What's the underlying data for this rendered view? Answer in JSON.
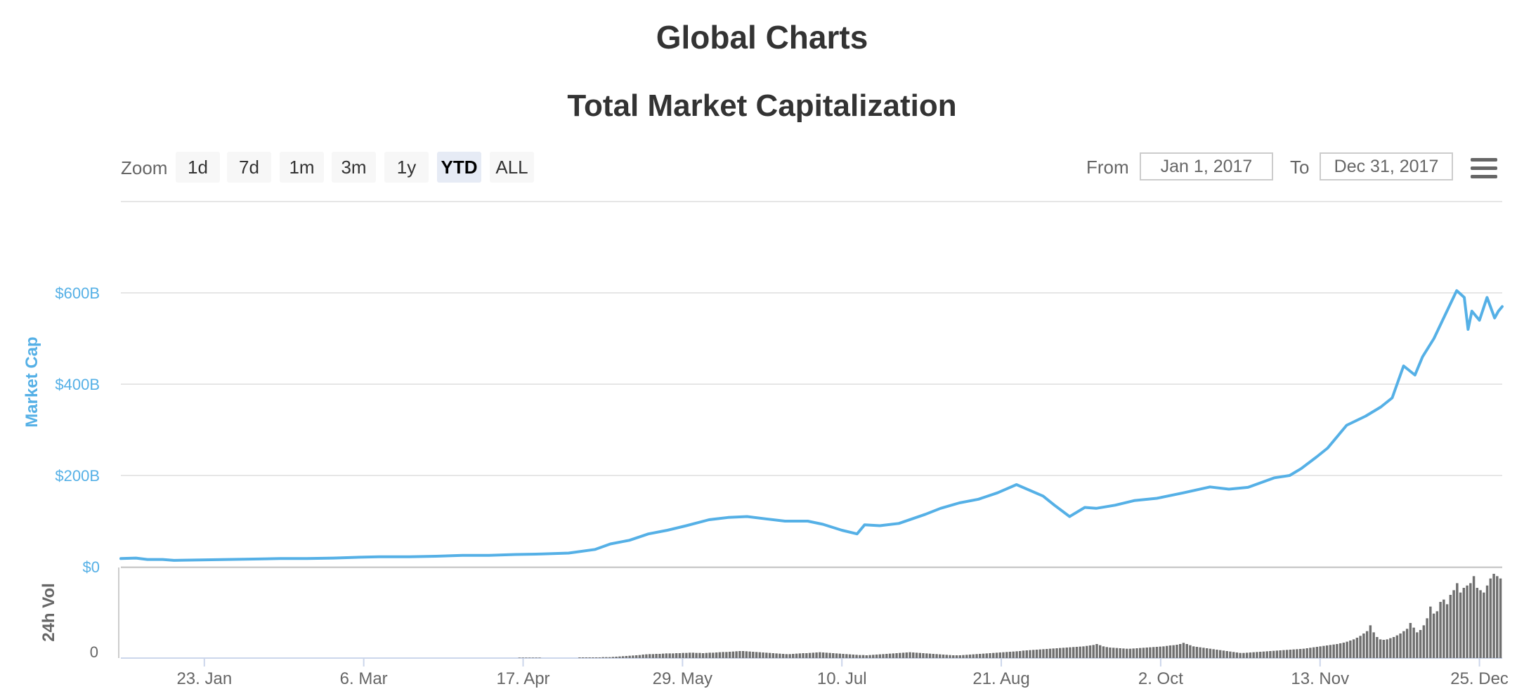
{
  "page": {
    "title": "Global Charts"
  },
  "toolbar": {
    "zoom_label": "Zoom",
    "zoom_buttons": [
      "1d",
      "7d",
      "1m",
      "3m",
      "1y",
      "YTD",
      "ALL"
    ],
    "active_zoom": "YTD",
    "from_label": "From",
    "from_value": "Jan 1, 2017",
    "to_label": "To",
    "to_value": "Dec 31, 2017",
    "menu_icon": "hamburger-menu-icon"
  },
  "colors": {
    "market_cap_line": "#55b0e6",
    "volume_bars": "#6f6f6f",
    "axis_blue": "#55b0e6",
    "gridline": "#e6e6e6"
  },
  "chart_data": {
    "type": "line",
    "title": "Total Market Capitalization",
    "xlabel": "",
    "ylabel": "Market Cap",
    "x_tick_labels": [
      "23. Jan",
      "6. Mar",
      "17. Apr",
      "29. May",
      "10. Jul",
      "21. Aug",
      "2. Oct",
      "13. Nov",
      "25. Dec"
    ],
    "y_tick_labels": [
      "$0",
      "$200B",
      "$400B",
      "$600B"
    ],
    "ylim": [
      0,
      600
    ],
    "xlim": [
      "2017-01-01",
      "2017-12-31"
    ],
    "grid": true,
    "legend": "none",
    "series": [
      {
        "values_unit": "billion USD",
        "x": [
          "2017-01-01",
          "2017-01-05",
          "2017-01-08",
          "2017-01-12",
          "2017-01-15",
          "2017-01-22",
          "2017-01-29",
          "2017-02-05",
          "2017-02-12",
          "2017-02-19",
          "2017-02-26",
          "2017-03-05",
          "2017-03-10",
          "2017-03-18",
          "2017-03-25",
          "2017-04-01",
          "2017-04-08",
          "2017-04-15",
          "2017-04-22",
          "2017-04-29",
          "2017-05-06",
          "2017-05-10",
          "2017-05-15",
          "2017-05-20",
          "2017-05-25",
          "2017-05-30",
          "2017-06-05",
          "2017-06-10",
          "2017-06-15",
          "2017-06-20",
          "2017-06-25",
          "2017-07-01",
          "2017-07-05",
          "2017-07-10",
          "2017-07-14",
          "2017-07-16",
          "2017-07-20",
          "2017-07-25",
          "2017-08-01",
          "2017-08-05",
          "2017-08-10",
          "2017-08-15",
          "2017-08-20",
          "2017-08-25",
          "2017-09-01",
          "2017-09-04",
          "2017-09-08",
          "2017-09-12",
          "2017-09-15",
          "2017-09-20",
          "2017-09-25",
          "2017-10-01",
          "2017-10-08",
          "2017-10-15",
          "2017-10-20",
          "2017-10-25",
          "2017-11-01",
          "2017-11-05",
          "2017-11-08",
          "2017-11-12",
          "2017-11-15",
          "2017-11-20",
          "2017-11-25",
          "2017-11-29",
          "2017-12-02",
          "2017-12-05",
          "2017-12-08",
          "2017-12-10",
          "2017-12-13",
          "2017-12-17",
          "2017-12-19",
          "2017-12-21",
          "2017-12-22",
          "2017-12-23",
          "2017-12-25",
          "2017-12-27",
          "2017-12-29",
          "2017-12-30",
          "2017-12-31"
        ],
        "values": [
          18,
          19,
          16,
          16,
          14,
          15,
          16,
          17,
          18,
          18,
          19,
          21,
          22,
          22,
          23,
          25,
          25,
          27,
          28,
          30,
          38,
          50,
          58,
          72,
          80,
          90,
          103,
          108,
          110,
          105,
          100,
          100,
          93,
          80,
          72,
          92,
          90,
          95,
          115,
          128,
          140,
          148,
          162,
          180,
          155,
          135,
          110,
          130,
          128,
          135,
          145,
          150,
          162,
          175,
          170,
          174,
          195,
          200,
          215,
          240,
          260,
          310,
          330,
          350,
          370,
          440,
          420,
          460,
          500,
          570,
          605,
          590,
          520,
          560,
          540,
          590,
          545,
          560,
          570
        ]
      }
    ],
    "volume": {
      "ylabel": "24h Vol",
      "y_tick_labels": [
        "0"
      ],
      "values_unit": "billion USD",
      "values": [
        0,
        0,
        0,
        0,
        0,
        0,
        0,
        0,
        0,
        0,
        0,
        0,
        0,
        0,
        0,
        0,
        0,
        0,
        0,
        0,
        0,
        0,
        0,
        0,
        0,
        0,
        0,
        0,
        0,
        0,
        0,
        0,
        0,
        0,
        0,
        0,
        0,
        0,
        0,
        0,
        0,
        0,
        0,
        0,
        0,
        0,
        0,
        0,
        0,
        0,
        0,
        0,
        0,
        0,
        0,
        0,
        0,
        0,
        0,
        0,
        0,
        0,
        0,
        0,
        0,
        0,
        0,
        0,
        0,
        0,
        0,
        0,
        0,
        0,
        0,
        0,
        0,
        0,
        0,
        0,
        0,
        0,
        0,
        0,
        0,
        0,
        0,
        0,
        0,
        0,
        0,
        0,
        0,
        0,
        0,
        0,
        0,
        0,
        0,
        0,
        0,
        0,
        0,
        0,
        0,
        0,
        0,
        0,
        0,
        0,
        0,
        0,
        0,
        0,
        0,
        0,
        0,
        0,
        0,
        0.4,
        0.4,
        0.4,
        0.4,
        0.4,
        0.4,
        0.4,
        0,
        0,
        0,
        0,
        0,
        0,
        0,
        0,
        0,
        0,
        0,
        0.6,
        0.6,
        0.6,
        0.6,
        0.6,
        0.6,
        0.6,
        0.8,
        0.8,
        0.8,
        1,
        1.2,
        1.4,
        1.6,
        1.8,
        2,
        2.2,
        2.4,
        2.6,
        3,
        3.2,
        3.4,
        3.4,
        3.6,
        3.6,
        3.8,
        4,
        4,
        4,
        4.2,
        4.2,
        4.4,
        4.4,
        4.6,
        4.6,
        4.4,
        4.4,
        4.2,
        4.4,
        4.6,
        4.6,
        4.8,
        5,
        5.2,
        5.2,
        5.4,
        5.6,
        5.8,
        6,
        6,
        5.8,
        5.6,
        5.4,
        5.2,
        5,
        4.8,
        4.6,
        4.4,
        4.2,
        4,
        3.8,
        3.6,
        3.4,
        3.4,
        3.6,
        3.8,
        4,
        4.2,
        4.2,
        4.4,
        4.6,
        4.8,
        5,
        4.8,
        4.6,
        4.4,
        4.2,
        4,
        3.8,
        3.6,
        3.4,
        3.2,
        3,
        2.8,
        2.6,
        2.6,
        2.4,
        2.6,
        2.8,
        3,
        3.2,
        3.4,
        3.6,
        3.8,
        4,
        4.2,
        4.4,
        4.6,
        4.8,
        5,
        4.8,
        4.6,
        4.4,
        4.2,
        4,
        3.8,
        3.6,
        3.4,
        3.2,
        3,
        2.8,
        2.6,
        2.4,
        2.4,
        2.4,
        2.6,
        2.8,
        3,
        3.2,
        3.4,
        3.6,
        3.8,
        4,
        4.2,
        4.4,
        4.6,
        4.8,
        5,
        5.2,
        5.4,
        5.6,
        5.8,
        6,
        6.4,
        6.6,
        6.8,
        7,
        7.2,
        7.4,
        7.6,
        7.8,
        8,
        8.2,
        8.4,
        8.6,
        8.8,
        9,
        9.2,
        9.4,
        9.6,
        9.8,
        10,
        10.4,
        10.8,
        11.2,
        12,
        11,
        10,
        9.4,
        9,
        8.8,
        8.6,
        8.4,
        8.2,
        8,
        8,
        8.2,
        8.4,
        8.6,
        8.8,
        9,
        9.2,
        9.4,
        9.6,
        9.8,
        10,
        10.4,
        10.8,
        11,
        11.4,
        12,
        13,
        12,
        11,
        10,
        9.6,
        9.2,
        8.8,
        8.4,
        8,
        7.6,
        7.2,
        6.8,
        6.4,
        6,
        5.6,
        5.2,
        4.8,
        4.4,
        4.4,
        4.6,
        4.8,
        5,
        5.2,
        5.4,
        5.6,
        5.8,
        6,
        6.2,
        6.4,
        6.6,
        6.8,
        7,
        7.2,
        7.4,
        7.6,
        7.8,
        8,
        8.4,
        8.8,
        9.2,
        9.6,
        10,
        10.4,
        10.8,
        11.2,
        11.6,
        12,
        12.6,
        13.2,
        14,
        15,
        16,
        17.4,
        19,
        21,
        23,
        28,
        22,
        18,
        16,
        15.6,
        16,
        17,
        18,
        19.4,
        21,
        23,
        25,
        30,
        26,
        22,
        24,
        28,
        34,
        44,
        38,
        40,
        48,
        50,
        46,
        54,
        58,
        64,
        56,
        60,
        62,
        64,
        70,
        60,
        58,
        56,
        62,
        68,
        72,
        70,
        68
      ]
    }
  }
}
